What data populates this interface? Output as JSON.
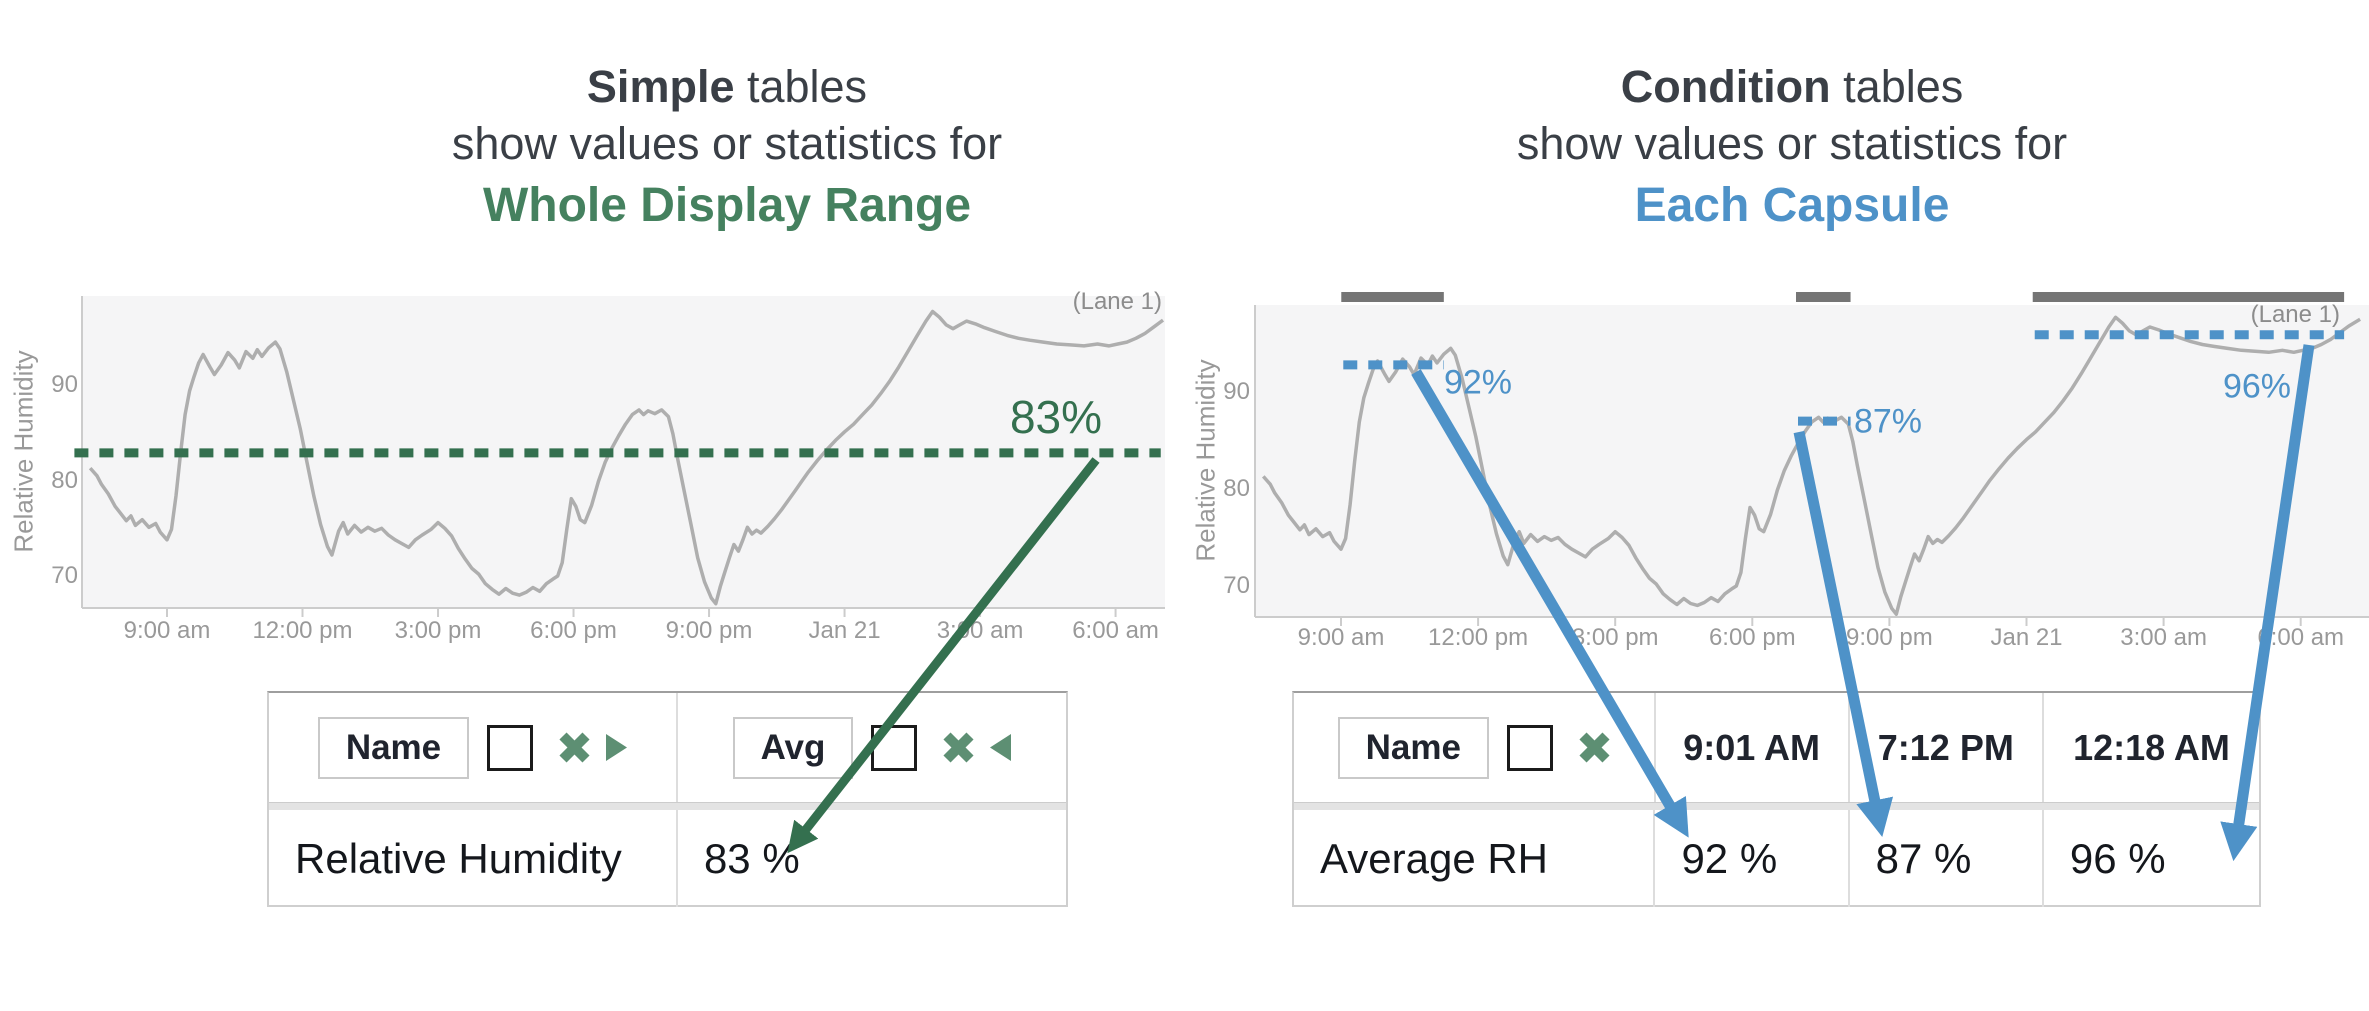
{
  "titles": {
    "simple": {
      "lead": "Simple",
      "rest": " tables",
      "line2": "show values or statistics for",
      "line3": "Whole Display Range"
    },
    "condition": {
      "lead": "Condition",
      "rest": " tables",
      "line2": "show values or statistics for",
      "line3": "Each Capsule"
    }
  },
  "colors": {
    "green": "#45815f",
    "green_dark": "#34704f",
    "green_icon": "#5d8f73",
    "blue": "#4e92c8",
    "curve_gray": "#aeaeae",
    "capsule_gray": "#757575",
    "plot_bg": "#f5f5f6",
    "axis_line": "#cccccc",
    "axis_text": "#999999"
  },
  "icons": {
    "remove_column": "x-cross",
    "collapse_right": "triangle-right",
    "collapse_left": "triangle-left",
    "checkbox": "empty-square"
  },
  "chart_data": [
    {
      "type": "line",
      "ylabel": "Relative Humidity",
      "lane_label": "(Lane 1)",
      "y_ticks": [
        70,
        80,
        90
      ],
      "ylim": [
        66.8,
        99.4
      ],
      "x_ticks": [
        {
          "t": 9,
          "label": "9:00 am"
        },
        {
          "t": 12,
          "label": "12:00 pm"
        },
        {
          "t": 15,
          "label": "3:00 pm"
        },
        {
          "t": 18,
          "label": "6:00 pm"
        },
        {
          "t": 21,
          "label": "9:00 pm"
        },
        {
          "t": 24,
          "label": "Jan 21"
        },
        {
          "t": 27,
          "label": "3:00 am"
        },
        {
          "t": 30,
          "label": "6:00 am"
        }
      ],
      "series": {
        "name": "Relative Humidity",
        "points": [
          [
            6.9,
            83.2
          ],
          [
            7.05,
            82.4
          ],
          [
            7.15,
            82.7
          ],
          [
            7.3,
            81.4
          ],
          [
            7.45,
            80.6
          ],
          [
            7.55,
            79.7
          ],
          [
            7.7,
            78.7
          ],
          [
            7.85,
            77.4
          ],
          [
            7.95,
            76.8
          ],
          [
            8.1,
            75.9
          ],
          [
            8.2,
            76.4
          ],
          [
            8.3,
            75.4
          ],
          [
            8.45,
            76.0
          ],
          [
            8.6,
            75.2
          ],
          [
            8.75,
            75.6
          ],
          [
            8.85,
            74.7
          ],
          [
            9.0,
            73.9
          ],
          [
            9.1,
            75.0
          ],
          [
            9.2,
            78.5
          ],
          [
            9.3,
            83.0
          ],
          [
            9.4,
            87.0
          ],
          [
            9.5,
            89.5
          ],
          [
            9.6,
            91.0
          ],
          [
            9.7,
            92.4
          ],
          [
            9.8,
            93.3
          ],
          [
            9.95,
            92.0
          ],
          [
            10.05,
            91.2
          ],
          [
            10.2,
            92.2
          ],
          [
            10.35,
            93.5
          ],
          [
            10.5,
            92.7
          ],
          [
            10.6,
            91.9
          ],
          [
            10.75,
            93.6
          ],
          [
            10.9,
            92.9
          ],
          [
            11.0,
            93.8
          ],
          [
            11.1,
            93.1
          ],
          [
            11.25,
            94.0
          ],
          [
            11.4,
            94.6
          ],
          [
            11.5,
            93.9
          ],
          [
            11.65,
            91.5
          ],
          [
            11.8,
            88.5
          ],
          [
            11.95,
            85.5
          ],
          [
            12.1,
            82.0
          ],
          [
            12.25,
            78.5
          ],
          [
            12.4,
            75.5
          ],
          [
            12.55,
            73.2
          ],
          [
            12.65,
            72.3
          ],
          [
            12.8,
            74.8
          ],
          [
            12.9,
            75.7
          ],
          [
            13.0,
            74.5
          ],
          [
            13.15,
            75.4
          ],
          [
            13.3,
            74.7
          ],
          [
            13.45,
            75.2
          ],
          [
            13.6,
            74.8
          ],
          [
            13.75,
            75.1
          ],
          [
            13.9,
            74.4
          ],
          [
            14.05,
            73.9
          ],
          [
            14.2,
            73.5
          ],
          [
            14.35,
            73.1
          ],
          [
            14.5,
            73.9
          ],
          [
            14.65,
            74.4
          ],
          [
            14.85,
            75.0
          ],
          [
            15.0,
            75.7
          ],
          [
            15.15,
            75.1
          ],
          [
            15.3,
            74.3
          ],
          [
            15.45,
            73.0
          ],
          [
            15.6,
            71.9
          ],
          [
            15.75,
            70.9
          ],
          [
            15.9,
            70.3
          ],
          [
            16.05,
            69.3
          ],
          [
            16.2,
            68.7
          ],
          [
            16.35,
            68.2
          ],
          [
            16.5,
            68.8
          ],
          [
            16.65,
            68.3
          ],
          [
            16.8,
            68.1
          ],
          [
            16.95,
            68.4
          ],
          [
            17.1,
            68.9
          ],
          [
            17.25,
            68.5
          ],
          [
            17.4,
            69.3
          ],
          [
            17.55,
            69.8
          ],
          [
            17.65,
            70.1
          ],
          [
            17.75,
            71.5
          ],
          [
            17.85,
            75.0
          ],
          [
            17.95,
            78.2
          ],
          [
            18.05,
            77.4
          ],
          [
            18.15,
            76.0
          ],
          [
            18.25,
            75.7
          ],
          [
            18.4,
            77.5
          ],
          [
            18.55,
            80.0
          ],
          [
            18.7,
            82.0
          ],
          [
            18.85,
            83.5
          ],
          [
            19.0,
            84.8
          ],
          [
            19.15,
            86.0
          ],
          [
            19.3,
            87.0
          ],
          [
            19.45,
            87.5
          ],
          [
            19.55,
            87.0
          ],
          [
            19.65,
            87.4
          ],
          [
            19.8,
            87.1
          ],
          [
            19.95,
            87.5
          ],
          [
            20.1,
            86.8
          ],
          [
            20.2,
            85.0
          ],
          [
            20.3,
            82.5
          ],
          [
            20.45,
            79.0
          ],
          [
            20.6,
            75.5
          ],
          [
            20.75,
            72.0
          ],
          [
            20.9,
            69.5
          ],
          [
            21.05,
            67.8
          ],
          [
            21.15,
            67.2
          ],
          [
            21.25,
            69.0
          ],
          [
            21.35,
            70.5
          ],
          [
            21.45,
            72.0
          ],
          [
            21.55,
            73.4
          ],
          [
            21.65,
            72.7
          ],
          [
            21.75,
            73.9
          ],
          [
            21.85,
            75.2
          ],
          [
            21.95,
            74.5
          ],
          [
            22.05,
            74.9
          ],
          [
            22.15,
            74.6
          ],
          [
            22.3,
            75.3
          ],
          [
            22.45,
            76.1
          ],
          [
            22.6,
            77.0
          ],
          [
            22.75,
            78.0
          ],
          [
            22.9,
            79.0
          ],
          [
            23.05,
            80.0
          ],
          [
            23.2,
            81.0
          ],
          [
            23.4,
            82.2
          ],
          [
            23.6,
            83.3
          ],
          [
            23.8,
            84.3
          ],
          [
            24.0,
            85.2
          ],
          [
            24.2,
            86.0
          ],
          [
            24.4,
            87.0
          ],
          [
            24.6,
            88.0
          ],
          [
            24.8,
            89.2
          ],
          [
            25.0,
            90.5
          ],
          [
            25.2,
            92.0
          ],
          [
            25.4,
            93.6
          ],
          [
            25.6,
            95.2
          ],
          [
            25.8,
            96.8
          ],
          [
            25.95,
            97.8
          ],
          [
            26.1,
            97.2
          ],
          [
            26.25,
            96.4
          ],
          [
            26.4,
            96.0
          ],
          [
            26.55,
            96.4
          ],
          [
            26.7,
            96.8
          ],
          [
            26.9,
            96.5
          ],
          [
            27.1,
            96.1
          ],
          [
            27.35,
            95.7
          ],
          [
            27.6,
            95.3
          ],
          [
            27.85,
            95.0
          ],
          [
            28.1,
            94.8
          ],
          [
            28.4,
            94.6
          ],
          [
            28.7,
            94.4
          ],
          [
            29.0,
            94.3
          ],
          [
            29.3,
            94.2
          ],
          [
            29.6,
            94.4
          ],
          [
            29.85,
            94.2
          ],
          [
            30.05,
            94.4
          ],
          [
            30.25,
            94.6
          ],
          [
            30.45,
            95.0
          ],
          [
            30.65,
            95.5
          ],
          [
            30.85,
            96.2
          ],
          [
            31.05,
            96.9
          ],
          [
            31.3,
            97.6
          ],
          [
            31.5,
            98.2
          ]
        ]
      },
      "dotted": [
        {
          "t_from": 6.95,
          "t_to": 31.0,
          "value": 83,
          "label": "83%"
        }
      ],
      "summary": {
        "stat": "Avg",
        "value": 83,
        "label": "83%"
      }
    },
    {
      "type": "line",
      "ylabel": "Relative Humidity",
      "lane_label": "(Lane 1)",
      "y_ticks": [
        70,
        80,
        90
      ],
      "ylim": [
        66.4,
        99.0
      ],
      "x_ticks": [
        {
          "t": 9,
          "label": "9:00 am"
        },
        {
          "t": 12,
          "label": "12:00 pm"
        },
        {
          "t": 15,
          "label": "3:00 pm"
        },
        {
          "t": 18,
          "label": "6:00 pm"
        },
        {
          "t": 21,
          "label": "9:00 pm"
        },
        {
          "t": 24,
          "label": "Jan 21"
        },
        {
          "t": 27,
          "label": "3:00 am"
        },
        {
          "t": 30,
          "label": "6:00 am"
        }
      ],
      "series": {
        "name": "Relative Humidity",
        "points_ref": 0
      },
      "capsules": [
        {
          "start_label": "9:01 AM",
          "t_from": 9.05,
          "t_to": 11.25,
          "avg": 92,
          "line_value": 92.9,
          "label": "92%"
        },
        {
          "start_label": "7:12 PM",
          "t_from": 19.0,
          "t_to": 20.15,
          "avg": 87,
          "line_value": 87.1,
          "label": "87%"
        },
        {
          "start_label": "12:18 AM",
          "t_from": 24.18,
          "t_to": 30.95,
          "avg": 96,
          "line_value": 96.0,
          "label": "96%"
        }
      ]
    }
  ],
  "tables": {
    "simple": {
      "name_header": "Name",
      "stat_header": "Avg",
      "row": {
        "name": "Relative Humidity",
        "avg": "83 %"
      }
    },
    "condition": {
      "name_header": "Name",
      "capsule_headers": [
        "9:01 AM",
        "7:12 PM",
        "12:18 AM"
      ],
      "row": {
        "name": "Average RH",
        "values": [
          "92 %",
          "87 %",
          "96 %"
        ]
      }
    }
  }
}
